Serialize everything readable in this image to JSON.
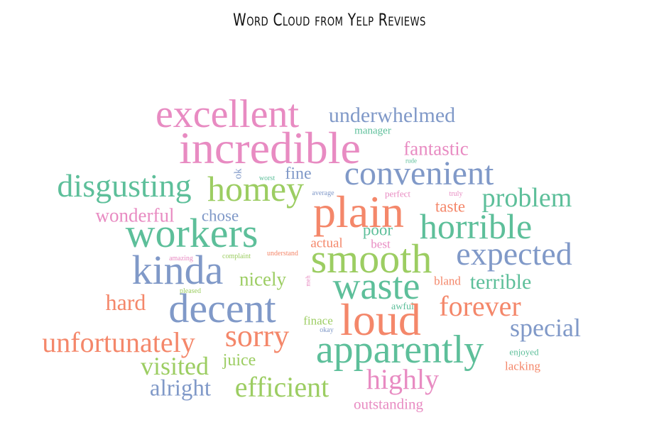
{
  "title": "Word Cloud from Yelp Reviews",
  "colors": {
    "teal": "#5dbf9a",
    "orange": "#f4876a",
    "blue": "#8099c8",
    "pink": "#e88bc2",
    "green": "#9ccd62"
  },
  "words": [
    {
      "text": "excellent",
      "color": "pink"
    },
    {
      "text": "underwhelmed",
      "color": "blue"
    },
    {
      "text": "incredible",
      "color": "pink"
    },
    {
      "text": "manager",
      "color": "teal"
    },
    {
      "text": "fantastic",
      "color": "pink"
    },
    {
      "text": "rude",
      "color": "teal"
    },
    {
      "text": "convenient",
      "color": "blue"
    },
    {
      "text": "fine",
      "color": "blue"
    },
    {
      "text": "ok",
      "color": "blue"
    },
    {
      "text": "worst",
      "color": "teal"
    },
    {
      "text": "disgusting",
      "color": "teal"
    },
    {
      "text": "homey",
      "color": "green"
    },
    {
      "text": "average",
      "color": "blue"
    },
    {
      "text": "perfect",
      "color": "pink"
    },
    {
      "text": "truly",
      "color": "pink"
    },
    {
      "text": "problem",
      "color": "teal"
    },
    {
      "text": "plain",
      "color": "orange"
    },
    {
      "text": "taste",
      "color": "orange"
    },
    {
      "text": "wonderful",
      "color": "pink"
    },
    {
      "text": "chose",
      "color": "blue"
    },
    {
      "text": "horrible",
      "color": "teal"
    },
    {
      "text": "workers",
      "color": "teal"
    },
    {
      "text": "poor",
      "color": "teal"
    },
    {
      "text": "actual",
      "color": "orange"
    },
    {
      "text": "best",
      "color": "pink"
    },
    {
      "text": "expected",
      "color": "blue"
    },
    {
      "text": "amazing",
      "color": "pink"
    },
    {
      "text": "complaint",
      "color": "green"
    },
    {
      "text": "understand",
      "color": "orange"
    },
    {
      "text": "smooth",
      "color": "green"
    },
    {
      "text": "kinda",
      "color": "blue"
    },
    {
      "text": "nicely",
      "color": "green"
    },
    {
      "text": "meh",
      "color": "pink"
    },
    {
      "text": "bland",
      "color": "orange"
    },
    {
      "text": "terrible",
      "color": "teal"
    },
    {
      "text": "waste",
      "color": "teal"
    },
    {
      "text": "pleased",
      "color": "green"
    },
    {
      "text": "hard",
      "color": "orange"
    },
    {
      "text": "decent",
      "color": "blue"
    },
    {
      "text": "awful",
      "color": "teal"
    },
    {
      "text": "forever",
      "color": "orange"
    },
    {
      "text": "finace",
      "color": "green"
    },
    {
      "text": "loud",
      "color": "orange"
    },
    {
      "text": "okay",
      "color": "blue"
    },
    {
      "text": "special",
      "color": "blue"
    },
    {
      "text": "sorry",
      "color": "orange"
    },
    {
      "text": "unfortunately",
      "color": "orange"
    },
    {
      "text": "apparently",
      "color": "teal"
    },
    {
      "text": "juice",
      "color": "green"
    },
    {
      "text": "enjoyed",
      "color": "teal"
    },
    {
      "text": "visited",
      "color": "green"
    },
    {
      "text": "lacking",
      "color": "orange"
    },
    {
      "text": "highly",
      "color": "pink"
    },
    {
      "text": "alright",
      "color": "blue"
    },
    {
      "text": "efficient",
      "color": "green"
    },
    {
      "text": "outstanding",
      "color": "pink"
    }
  ]
}
